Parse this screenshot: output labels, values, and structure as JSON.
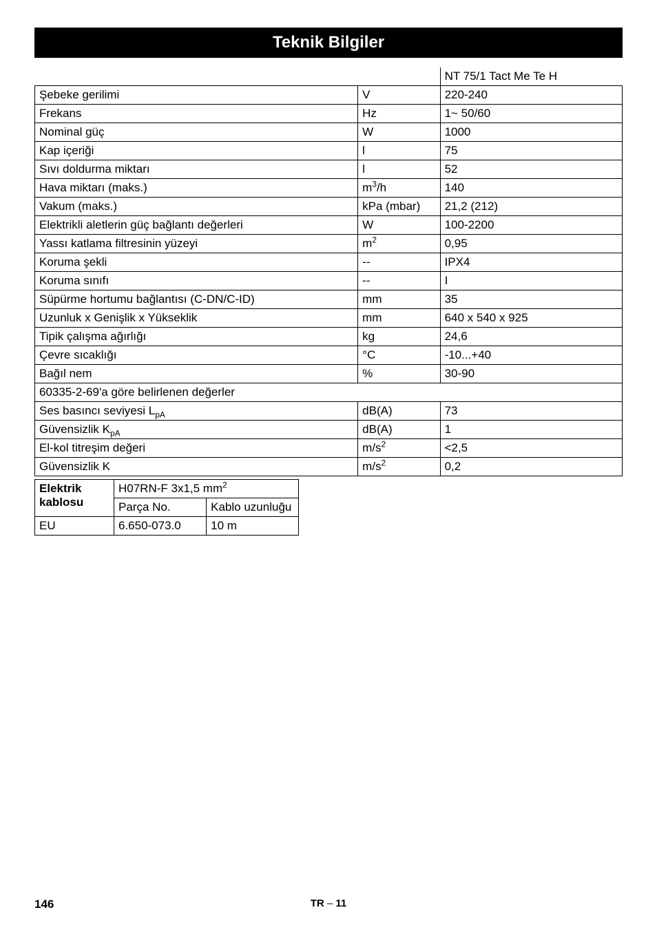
{
  "title": "Teknik Bilgiler",
  "main_table": {
    "header_value": "NT 75/1 Tact Me Te H",
    "rows": [
      {
        "label": "Şebeke gerilimi",
        "unit": "V",
        "value": "220-240"
      },
      {
        "label": "Frekans",
        "unit": "Hz",
        "value": "1~ 50/60"
      },
      {
        "label": "Nominal güç",
        "unit": "W",
        "value": "1000"
      },
      {
        "label": "Kap içeriği",
        "unit": "l",
        "value": "75"
      },
      {
        "label": "Sıvı doldurma miktarı",
        "unit": "l",
        "value": "52"
      },
      {
        "label": "Hava miktarı (maks.)",
        "unit_html": "m<sup>3</sup>/h",
        "value": "140"
      },
      {
        "label": "Vakum (maks.)",
        "unit": "kPa (mbar)",
        "value": "21,2 (212)"
      },
      {
        "label": "Elektrikli aletlerin güç bağlantı değerleri",
        "unit": "W",
        "value": "100-2200"
      },
      {
        "label": "Yassı katlama filtresinin yüzeyi",
        "unit_html": "m<sup>2</sup>",
        "value": "0,95"
      },
      {
        "label": "Koruma şekli",
        "unit": "--",
        "value": "IPX4"
      },
      {
        "label": "Koruma sınıfı",
        "unit": "--",
        "value": "I"
      },
      {
        "label": "Süpürme hortumu bağlantısı (C-DN/C-ID)",
        "unit": "mm",
        "value": "35"
      },
      {
        "label": "Uzunluk x Genişlik x Yükseklik",
        "unit": "mm",
        "value": "640 x 540 x 925"
      },
      {
        "label": "Tipik çalışma ağırlığı",
        "unit": "kg",
        "value": "24,6"
      },
      {
        "label": "Çevre sıcaklığı",
        "unit": "°C",
        "value": "-10...+40"
      },
      {
        "label": "Bağıl nem",
        "unit": "%",
        "value": "30-90"
      }
    ],
    "section_header": "60335-2-69'a göre belirlenen değerler",
    "section_rows": [
      {
        "label_html": "Ses basıncı seviyesi L<sub>pA</sub>",
        "unit": "dB(A)",
        "value": "73"
      },
      {
        "label_html": "Güvensizlik K<sub>pA</sub>",
        "unit": "dB(A)",
        "value": "1"
      },
      {
        "label": "El-kol titreşim değeri",
        "unit_html": "m/s<sup>2</sup>",
        "value": "<2,5"
      },
      {
        "label": "Güvensizlik K",
        "unit_html": "m/s<sup>2</sup>",
        "value": "0,2"
      }
    ]
  },
  "cable_table": {
    "col0_header": "Elektrik kablosu",
    "spec_html": "H07RN-F 3x1,5 mm<sup>2</sup>",
    "sub_headers": [
      "Parça No.",
      "Kablo uzunluğu"
    ],
    "row": [
      "EU",
      "6.650-073.0",
      "10 m"
    ]
  },
  "footer": {
    "page_num": "146",
    "lang": "TR",
    "dash": " – ",
    "sub_page": "11"
  }
}
